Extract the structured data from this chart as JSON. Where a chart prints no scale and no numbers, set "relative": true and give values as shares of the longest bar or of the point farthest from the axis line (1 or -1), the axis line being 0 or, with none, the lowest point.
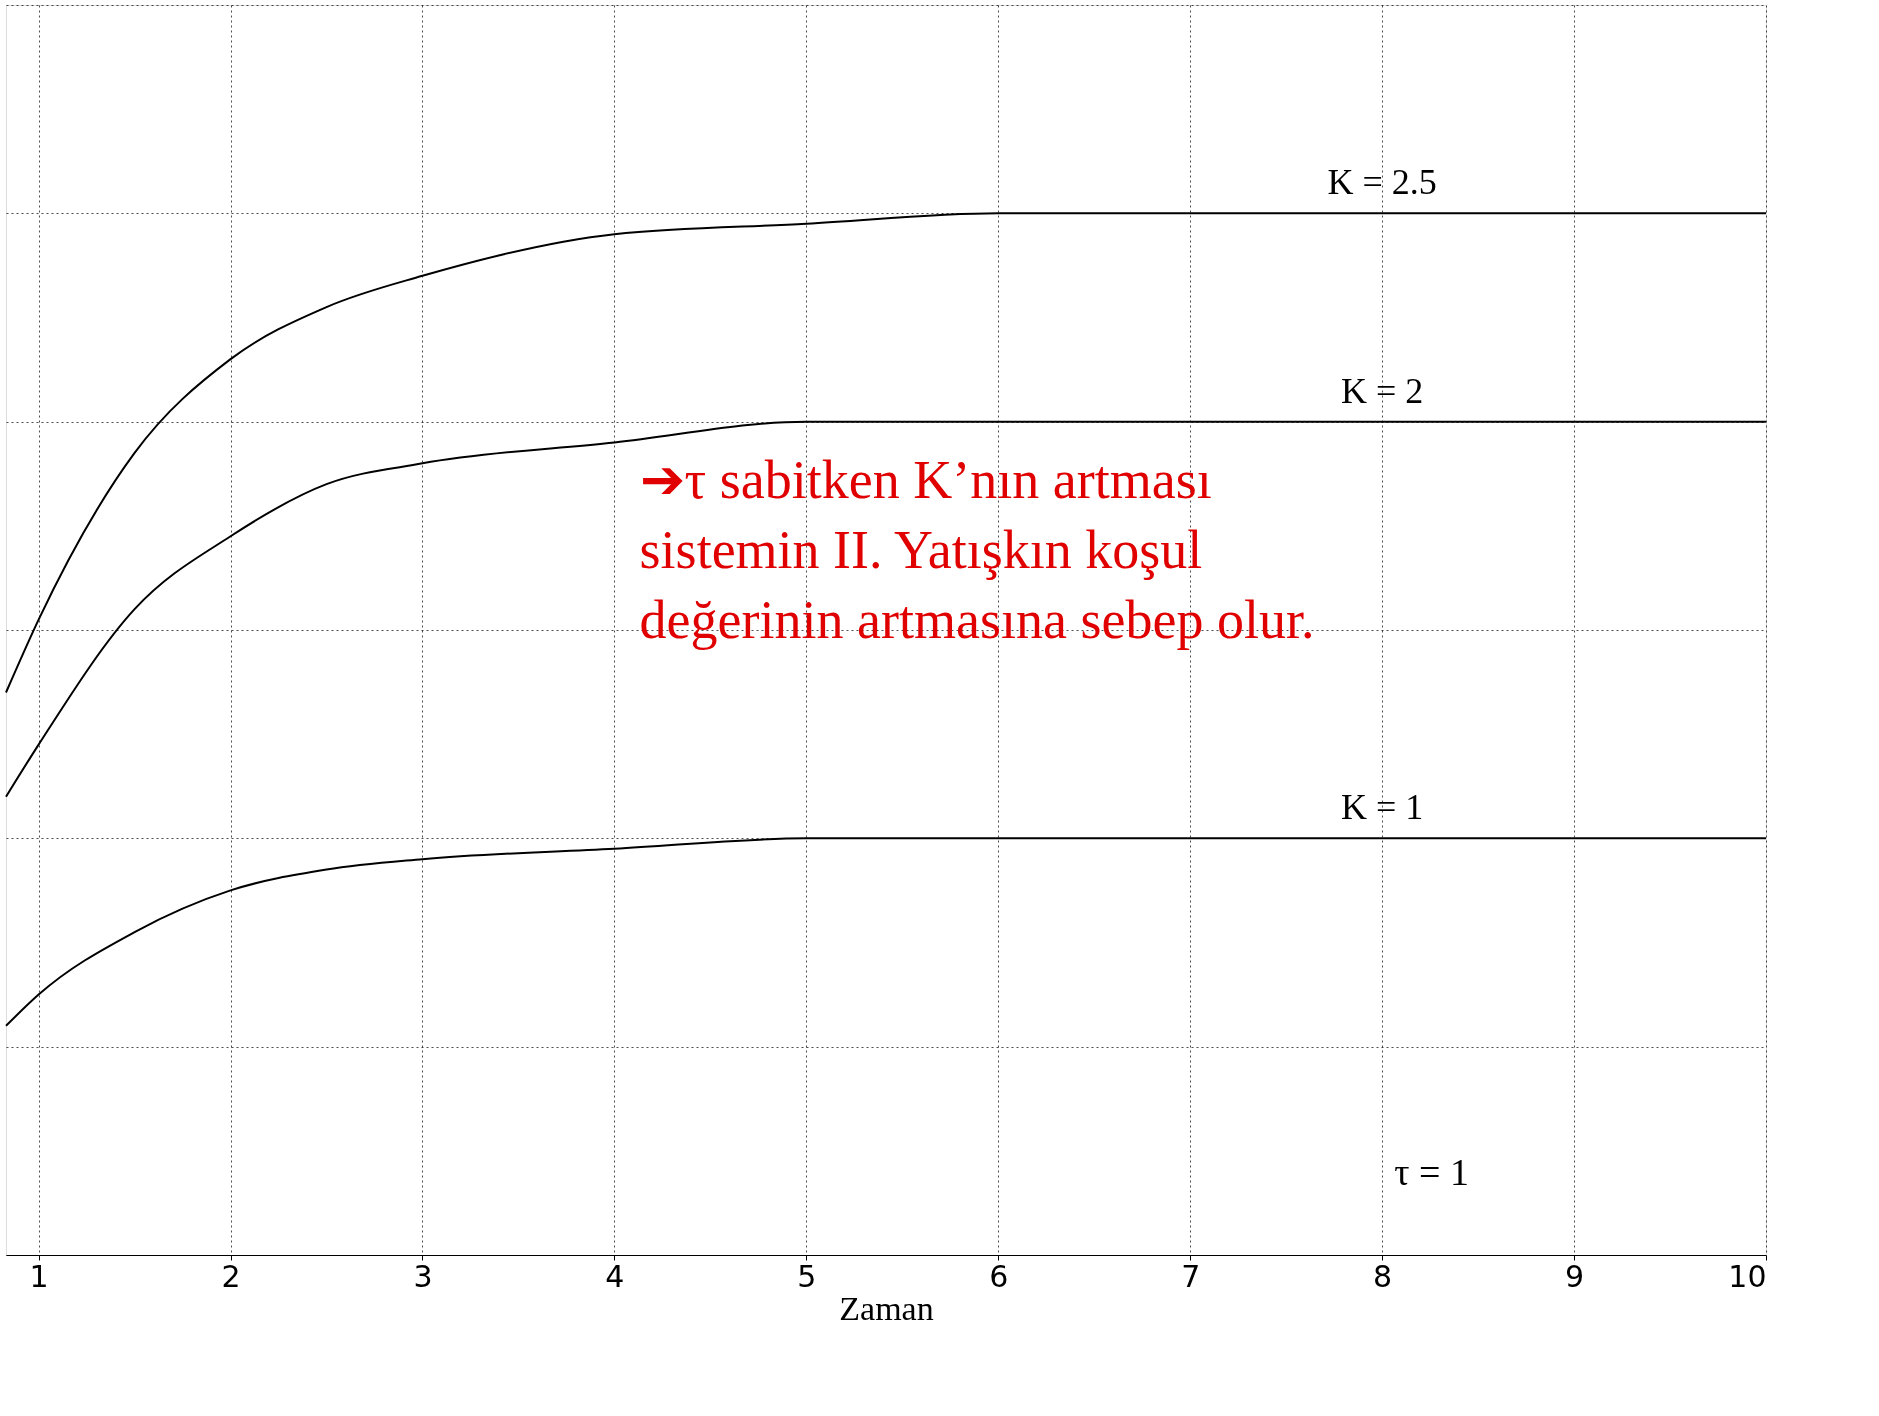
{
  "chart_data": {
    "type": "line",
    "relative": true,
    "xlabel": "Zaman",
    "x": [
      0.83,
      1,
      1.5,
      2,
      2.5,
      3,
      4,
      5,
      6,
      7,
      8,
      9,
      10
    ],
    "xlim": [
      0.83,
      10
    ],
    "xticks": [
      1,
      2,
      3,
      4,
      5,
      6,
      7,
      8,
      9,
      10
    ],
    "series": [
      {
        "name": "K = 2.5",
        "color": "#000000",
        "values": [
          0.54,
          0.61,
          0.77,
          0.86,
          0.91,
          0.94,
          0.98,
          0.99,
          1,
          1,
          1,
          1,
          1
        ]
      },
      {
        "name": "K = 2",
        "color": "#000000",
        "values": [
          0.44,
          0.49,
          0.62,
          0.69,
          0.74,
          0.76,
          0.78,
          0.8,
          0.8,
          0.8,
          0.8,
          0.8,
          0.8
        ]
      },
      {
        "name": "K = 1",
        "color": "#000000",
        "values": [
          0.22,
          0.25,
          0.31,
          0.35,
          0.37,
          0.38,
          0.39,
          0.4,
          0.4,
          0.4,
          0.4,
          0.4,
          0.4
        ]
      }
    ],
    "annotations": [
      "τ = 1",
      "➔τ sabitken K’nın artması sistemin II. Yatışkın koşul değerinin artmasına sebep olur."
    ],
    "grid": true,
    "line_style": "solid",
    "marker": "none"
  }
}
